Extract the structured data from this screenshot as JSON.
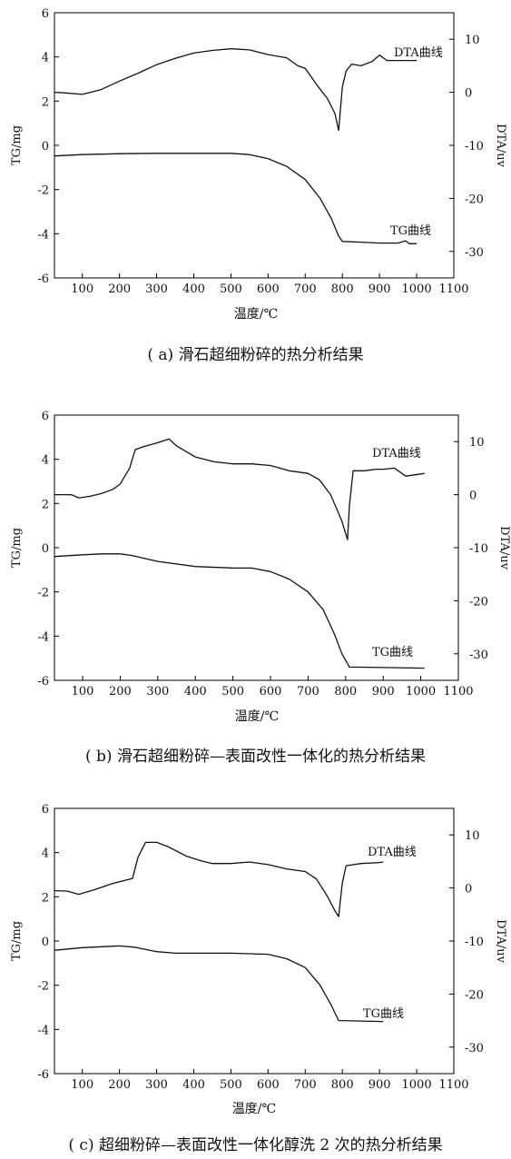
{
  "figures": [
    {
      "caption": "( a) 滑石超细粉碎的热分析结果",
      "xlabel": "温度/℃",
      "ylabel_left": "TG/mg",
      "ylabel_right": "DTA/uv"
    },
    {
      "caption": "( b) 滑石超细粉碎—表面改性一体化的热分析结果",
      "xlabel": "温度/℃",
      "ylabel_left": "TG/mg",
      "ylabel_right": "DTA/uv"
    },
    {
      "caption": "( c) 超细粉碎—表面改性一体化醇洗 2 次的热分析结果",
      "xlabel": "温度/℃",
      "ylabel_left": "TG/mg",
      "ylabel_right": "DTA/uv"
    }
  ],
  "chart_data": [
    {
      "type": "line",
      "xlabel": "温度/℃",
      "ylabel": "TG/mg",
      "ylabel_right": "DTA/uv",
      "xlim": [
        25,
        1100
      ],
      "ylim": [
        -6,
        6
      ],
      "ylim_right": [
        -35,
        15
      ],
      "x_ticks": [
        100,
        200,
        300,
        400,
        500,
        600,
        700,
        800,
        900,
        1000,
        1100
      ],
      "y_ticks": [
        -6,
        -4,
        -2,
        0,
        2,
        4,
        6
      ],
      "y_ticks_right": [
        -30,
        -20,
        -10,
        0,
        10
      ],
      "series": [
        {
          "name": "DTA曲线",
          "axis": "right",
          "points": [
            [
              25,
              0
            ],
            [
              50,
              -0.1
            ],
            [
              100,
              -0.4
            ],
            [
              150,
              0.5
            ],
            [
              200,
              2.1
            ],
            [
              250,
              3.6
            ],
            [
              300,
              5.2
            ],
            [
              350,
              6.4
            ],
            [
              400,
              7.4
            ],
            [
              450,
              7.9
            ],
            [
              500,
              8.2
            ],
            [
              550,
              8.0
            ],
            [
              600,
              7.1
            ],
            [
              650,
              6.5
            ],
            [
              680,
              5.0
            ],
            [
              700,
              4.5
            ],
            [
              730,
              1.5
            ],
            [
              760,
              -1.2
            ],
            [
              780,
              -4.0
            ],
            [
              790,
              -7.2
            ],
            [
              795,
              -3.0
            ],
            [
              800,
              1.0
            ],
            [
              810,
              4.0
            ],
            [
              825,
              5.3
            ],
            [
              850,
              5.0
            ],
            [
              880,
              5.8
            ],
            [
              900,
              7.0
            ],
            [
              920,
              6.0
            ],
            [
              950,
              6.0
            ],
            [
              1000,
              6.0
            ]
          ]
        },
        {
          "name": "TG曲线",
          "axis": "left",
          "points": [
            [
              25,
              -0.48
            ],
            [
              100,
              -0.42
            ],
            [
              200,
              -0.38
            ],
            [
              300,
              -0.36
            ],
            [
              400,
              -0.36
            ],
            [
              500,
              -0.36
            ],
            [
              550,
              -0.42
            ],
            [
              600,
              -0.6
            ],
            [
              650,
              -0.95
            ],
            [
              700,
              -1.55
            ],
            [
              740,
              -2.4
            ],
            [
              770,
              -3.3
            ],
            [
              790,
              -4.1
            ],
            [
              800,
              -4.35
            ],
            [
              850,
              -4.38
            ],
            [
              900,
              -4.42
            ],
            [
              950,
              -4.42
            ],
            [
              970,
              -4.32
            ],
            [
              980,
              -4.45
            ],
            [
              1000,
              -4.45
            ]
          ]
        }
      ]
    },
    {
      "type": "line",
      "xlabel": "温度/℃",
      "ylabel": "TG/mg",
      "ylabel_right": "DTA/uv",
      "xlim": [
        25,
        1100
      ],
      "ylim": [
        -6,
        6
      ],
      "ylim_right": [
        -35,
        15
      ],
      "x_ticks": [
        100,
        200,
        300,
        400,
        500,
        600,
        700,
        800,
        900,
        1000,
        1100
      ],
      "y_ticks": [
        -6,
        -4,
        -2,
        0,
        2,
        4,
        6
      ],
      "y_ticks_right": [
        -30,
        -20,
        -10,
        0,
        10
      ],
      "series": [
        {
          "name": "DTA曲线",
          "axis": "right",
          "points": [
            [
              25,
              0
            ],
            [
              70,
              0
            ],
            [
              90,
              -0.6
            ],
            [
              120,
              -0.3
            ],
            [
              150,
              0.2
            ],
            [
              180,
              1.0
            ],
            [
              200,
              2.0
            ],
            [
              225,
              5.0
            ],
            [
              240,
              8.5
            ],
            [
              260,
              9.0
            ],
            [
              300,
              9.8
            ],
            [
              330,
              10.5
            ],
            [
              350,
              9.2
            ],
            [
              400,
              7.1
            ],
            [
              450,
              6.2
            ],
            [
              500,
              5.8
            ],
            [
              550,
              5.8
            ],
            [
              600,
              5.5
            ],
            [
              650,
              4.5
            ],
            [
              700,
              4.0
            ],
            [
              730,
              2.8
            ],
            [
              760,
              0.0
            ],
            [
              790,
              -5.0
            ],
            [
              805,
              -8.5
            ],
            [
              810,
              -2.0
            ],
            [
              820,
              4.5
            ],
            [
              850,
              4.5
            ],
            [
              880,
              4.8
            ],
            [
              900,
              4.8
            ],
            [
              930,
              5.0
            ],
            [
              960,
              3.5
            ],
            [
              1010,
              4.0
            ]
          ]
        },
        {
          "name": "TG曲线",
          "axis": "left",
          "points": [
            [
              25,
              -0.4
            ],
            [
              100,
              -0.32
            ],
            [
              150,
              -0.28
            ],
            [
              200,
              -0.28
            ],
            [
              230,
              -0.35
            ],
            [
              300,
              -0.62
            ],
            [
              400,
              -0.85
            ],
            [
              500,
              -0.92
            ],
            [
              550,
              -0.92
            ],
            [
              600,
              -1.08
            ],
            [
              650,
              -1.42
            ],
            [
              700,
              -2.0
            ],
            [
              740,
              -2.8
            ],
            [
              770,
              -3.9
            ],
            [
              790,
              -4.8
            ],
            [
              810,
              -5.4
            ],
            [
              900,
              -5.42
            ],
            [
              1010,
              -5.45
            ]
          ]
        }
      ]
    },
    {
      "type": "line",
      "xlabel": "温度/℃",
      "ylabel": "TG/mg",
      "ylabel_right": "DTA/uv",
      "xlim": [
        25,
        1100
      ],
      "ylim": [
        -6,
        6
      ],
      "ylim_right": [
        -35,
        15
      ],
      "x_ticks": [
        100,
        200,
        300,
        400,
        500,
        600,
        700,
        800,
        900,
        1000,
        1100
      ],
      "y_ticks": [
        -6,
        -4,
        -2,
        0,
        2,
        4,
        6
      ],
      "y_ticks_right": [
        -30,
        -20,
        -10,
        0,
        10
      ],
      "series": [
        {
          "name": "DTA曲线",
          "axis": "right",
          "points": [
            [
              25,
              -0.5
            ],
            [
              60,
              -0.6
            ],
            [
              90,
              -1.2
            ],
            [
              130,
              -0.4
            ],
            [
              180,
              0.8
            ],
            [
              235,
              1.8
            ],
            [
              250,
              5.8
            ],
            [
              270,
              8.6
            ],
            [
              300,
              8.6
            ],
            [
              330,
              7.8
            ],
            [
              380,
              6.0
            ],
            [
              420,
              5.1
            ],
            [
              450,
              4.6
            ],
            [
              500,
              4.6
            ],
            [
              550,
              4.9
            ],
            [
              600,
              4.4
            ],
            [
              650,
              3.6
            ],
            [
              700,
              3.1
            ],
            [
              730,
              1.7
            ],
            [
              760,
              -1.6
            ],
            [
              780,
              -4.3
            ],
            [
              790,
              -5.4
            ],
            [
              800,
              1.0
            ],
            [
              810,
              4.2
            ],
            [
              850,
              4.6
            ],
            [
              900,
              4.8
            ],
            [
              910,
              4.9
            ]
          ]
        },
        {
          "name": "TG曲线",
          "axis": "left",
          "points": [
            [
              25,
              -0.42
            ],
            [
              100,
              -0.3
            ],
            [
              200,
              -0.22
            ],
            [
              240,
              -0.28
            ],
            [
              300,
              -0.48
            ],
            [
              350,
              -0.55
            ],
            [
              500,
              -0.55
            ],
            [
              600,
              -0.6
            ],
            [
              650,
              -0.8
            ],
            [
              700,
              -1.2
            ],
            [
              740,
              -2.0
            ],
            [
              770,
              -2.9
            ],
            [
              790,
              -3.6
            ],
            [
              850,
              -3.62
            ],
            [
              910,
              -3.64
            ]
          ]
        }
      ]
    }
  ]
}
